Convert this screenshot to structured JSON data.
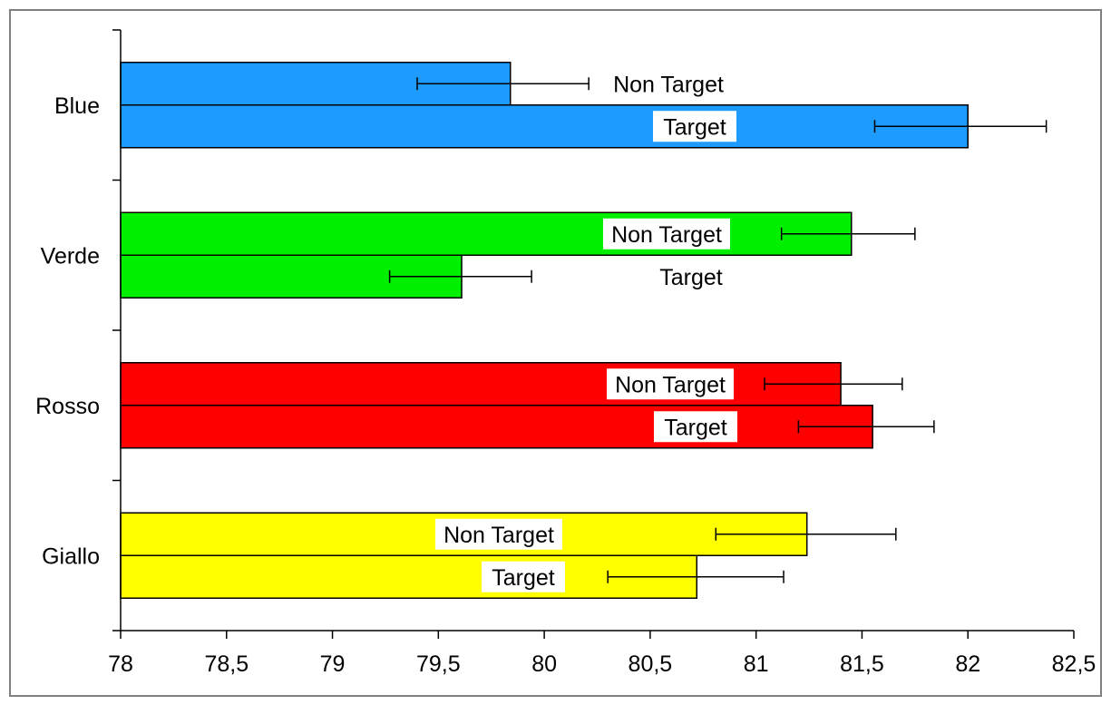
{
  "chart_data": {
    "type": "bar",
    "orientation": "horizontal",
    "categories": [
      "Blue",
      "Verde",
      "Rosso",
      "Giallo"
    ],
    "category_colors": {
      "Blue": "#1E9BFF",
      "Verde": "#00F000",
      "Rosso": "#FF0000",
      "Giallo": "#FFFF00"
    },
    "bar_labels": {
      "non_target": "Non Target",
      "target": "Target"
    },
    "groups": [
      {
        "category": "Blue",
        "non_target": {
          "value": 79.84,
          "error_low": 79.4,
          "error_high": 80.21
        },
        "target": {
          "value": 82.0,
          "error_low": 81.56,
          "error_high": 82.37
        }
      },
      {
        "category": "Verde",
        "non_target": {
          "value": 81.45,
          "error_low": 81.12,
          "error_high": 81.75
        },
        "target": {
          "value": 79.61,
          "error_low": 79.27,
          "error_high": 79.94
        }
      },
      {
        "category": "Rosso",
        "non_target": {
          "value": 81.4,
          "error_low": 81.04,
          "error_high": 81.69
        },
        "target": {
          "value": 81.55,
          "error_low": 81.2,
          "error_high": 81.84
        }
      },
      {
        "category": "Giallo",
        "non_target": {
          "value": 81.24,
          "error_low": 80.81,
          "error_high": 81.66
        },
        "target": {
          "value": 80.72,
          "error_low": 80.3,
          "error_high": 81.13
        }
      }
    ],
    "x_ticks": [
      "78",
      "78,5",
      "79",
      "79,5",
      "80",
      "80,5",
      "81",
      "81,5",
      "82",
      "82,5"
    ],
    "xlim": [
      78,
      82.5
    ],
    "title": "",
    "xlabel": "",
    "ylabel": "",
    "grid": false,
    "legend": "none"
  }
}
